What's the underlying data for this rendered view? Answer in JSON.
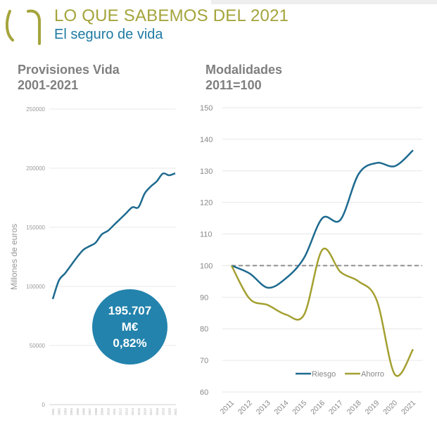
{
  "header": {
    "title": "LO QUE SABEMOS DEL 2021",
    "subtitle": "El seguro de vida"
  },
  "colors": {
    "title": "#a4a43c",
    "subtitle": "#1f7aa3",
    "riesgo": "#1d6a8f",
    "ahorro": "#a4a030",
    "bubble": "#2383ad"
  },
  "bubble": {
    "value": "195.707",
    "unit": "M€",
    "change": "0,82%"
  },
  "chart_data": [
    {
      "type": "line",
      "title": "Provisiones Vida",
      "subtitle": "2001-2021",
      "ylabel": "Millones de euros",
      "ylim": [
        0,
        250000
      ],
      "yticks": [
        "0",
        "50000",
        "100000",
        "150000",
        "200000",
        "250000"
      ],
      "grid": true,
      "x": [
        "2001",
        "2002",
        "2003",
        "2004",
        "2005",
        "2006",
        "2007",
        "2008",
        "2009",
        "2010",
        "2011",
        "2012",
        "2013",
        "2014",
        "2015",
        "2016",
        "2017",
        "2018",
        "2019",
        "2020",
        "2021"
      ],
      "series": [
        {
          "values": [
            89300,
            105000,
            111000,
            118000,
            125000,
            131000,
            134000,
            137000,
            144000,
            147000,
            152000,
            157000,
            162000,
            167000,
            167000,
            178500,
            184500,
            189000,
            195500,
            194000,
            195707
          ]
        }
      ]
    },
    {
      "type": "line",
      "title": "Modalidades",
      "subtitle": "2011=100",
      "ylim": [
        60,
        150
      ],
      "yticks": [
        "60",
        "70",
        "80",
        "90",
        "100",
        "110",
        "120",
        "130",
        "140",
        "150"
      ],
      "grid": true,
      "reference_line": 100,
      "legend": "bottom",
      "x": [
        "2011",
        "2012",
        "2013",
        "2014",
        "2015",
        "2016",
        "2017",
        "2018",
        "2019",
        "2020",
        "2021"
      ],
      "series": [
        {
          "name": "Riesgo",
          "values": [
            100,
            97.5,
            93,
            96,
            102.5,
            115,
            114.5,
            129,
            132.5,
            131.5,
            136.5
          ]
        },
        {
          "name": "Ahorro",
          "values": [
            100,
            89.5,
            87.5,
            84.5,
            84.5,
            105,
            98,
            95,
            89,
            65.5,
            73.5
          ]
        }
      ]
    }
  ]
}
